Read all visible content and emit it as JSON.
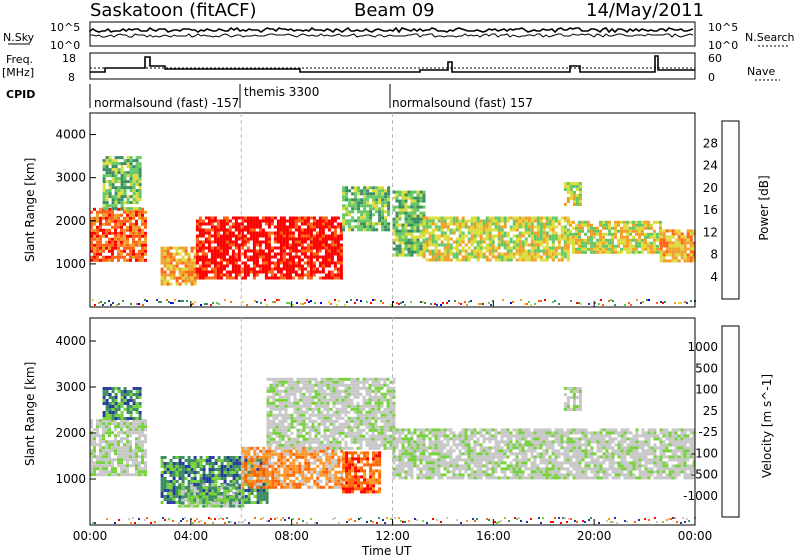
{
  "header": {
    "station": "Saskatoon (fitACF)",
    "beam": "Beam 09",
    "date": "14/May/2011"
  },
  "panels": {
    "nsky": {
      "label": "N.Sky",
      "ticks": [
        "10^5",
        "10^0"
      ]
    },
    "nsearch": {
      "label": "N.Search",
      "ticks": [
        "10^5",
        "10^0"
      ]
    },
    "freq": {
      "label": "Freq.",
      "unit": "[MHz]",
      "ticks": [
        "18",
        "8"
      ]
    },
    "nave": {
      "label": "Nave",
      "ticks": [
        "60",
        "0"
      ]
    },
    "cpid": {
      "label": "CPID"
    }
  },
  "cpid_segments": [
    {
      "text": "normalsound (fast) -157"
    },
    {
      "text": "themis 3300"
    },
    {
      "text": "normalsound (fast) 157"
    }
  ],
  "colors": {
    "power": [
      "#0000ff",
      "#283c96",
      "#3c8c64",
      "#64c864",
      "#dcdc3c",
      "#f0a028",
      "#ff6414",
      "#ff0000"
    ],
    "velocity": [
      "#ff0000",
      "#ff6400",
      "#ff9628",
      "#c8c8c8",
      "#c8c8c8",
      "#78d23c",
      "#3c8c64",
      "#283ca0",
      "#1e32a0"
    ]
  },
  "chart_data": [
    {
      "type": "heatmap",
      "title": "Power",
      "xlabel": "Time UT",
      "ylabel": "Slant Range [km]",
      "xlim": [
        0,
        24
      ],
      "ylim": [
        0,
        4500
      ],
      "x_tick_labels": [
        "00:00",
        "04:00",
        "08:00",
        "12:00",
        "16:00",
        "20:00",
        "00:00"
      ],
      "y_tick_labels": [
        "1000",
        "2000",
        "3000",
        "4000"
      ],
      "colorbar": {
        "label": "Power [dB]",
        "tick_labels": [
          "4",
          "8",
          "12",
          "16",
          "20",
          "24",
          "28"
        ]
      },
      "bands": [
        {
          "x": [
            0.0,
            2.2
          ],
          "y": [
            1100,
            2300
          ],
          "level": 6
        },
        {
          "x": [
            0.5,
            2.0
          ],
          "y": [
            2300,
            3500
          ],
          "level": 3
        },
        {
          "x": [
            2.8,
            4.2
          ],
          "y": [
            500,
            1400
          ],
          "level": 5
        },
        {
          "x": [
            4.2,
            10.0
          ],
          "y": [
            700,
            2100
          ],
          "level": 7
        },
        {
          "x": [
            10.0,
            11.8
          ],
          "y": [
            1800,
            2800
          ],
          "level": 3
        },
        {
          "x": [
            12.0,
            13.2
          ],
          "y": [
            1200,
            2700
          ],
          "level": 3
        },
        {
          "x": [
            13.2,
            19.0
          ],
          "y": [
            1100,
            2100
          ],
          "level": 4
        },
        {
          "x": [
            19.0,
            22.6
          ],
          "y": [
            1300,
            2000
          ],
          "level": 4
        },
        {
          "x": [
            22.6,
            24.0
          ],
          "y": [
            1100,
            1800
          ],
          "level": 5
        },
        {
          "x": [
            18.8,
            19.5
          ],
          "y": [
            2400,
            2900
          ],
          "level": 4
        }
      ]
    },
    {
      "type": "heatmap",
      "title": "Velocity",
      "xlabel": "Time UT",
      "ylabel": "Slant Range [km]",
      "xlim": [
        0,
        24
      ],
      "ylim": [
        0,
        4500
      ],
      "x_tick_labels": [
        "00:00",
        "04:00",
        "08:00",
        "12:00",
        "16:00",
        "20:00",
        "00:00"
      ],
      "y_tick_labels": [
        "1000",
        "2000",
        "3000",
        "4000"
      ],
      "colorbar": {
        "label": "Velocity [m s^-1]",
        "tick_labels": [
          "1000",
          "500",
          "100",
          "25",
          "-25",
          "-100",
          "-500",
          "-1000"
        ]
      },
      "bands": [
        {
          "x": [
            0.0,
            2.2
          ],
          "y": [
            1100,
            2300
          ],
          "level": 4
        },
        {
          "x": [
            0.5,
            2.0
          ],
          "y": [
            2300,
            3000
          ],
          "level": 6
        },
        {
          "x": [
            2.8,
            7.0
          ],
          "y": [
            500,
            1500
          ],
          "level": 6
        },
        {
          "x": [
            3.5,
            6.0
          ],
          "y": [
            400,
            900
          ],
          "level": 5
        },
        {
          "x": [
            6.0,
            10.0
          ],
          "y": [
            800,
            1700
          ],
          "level": 2
        },
        {
          "x": [
            10.0,
            11.5
          ],
          "y": [
            700,
            1600
          ],
          "level": 1
        },
        {
          "x": [
            7.0,
            12.0
          ],
          "y": [
            1700,
            3200
          ],
          "level": 4
        },
        {
          "x": [
            12.0,
            24.0
          ],
          "y": [
            1000,
            2100
          ],
          "level": 4
        },
        {
          "x": [
            18.8,
            19.5
          ],
          "y": [
            2500,
            3000
          ],
          "level": 4
        }
      ]
    }
  ]
}
